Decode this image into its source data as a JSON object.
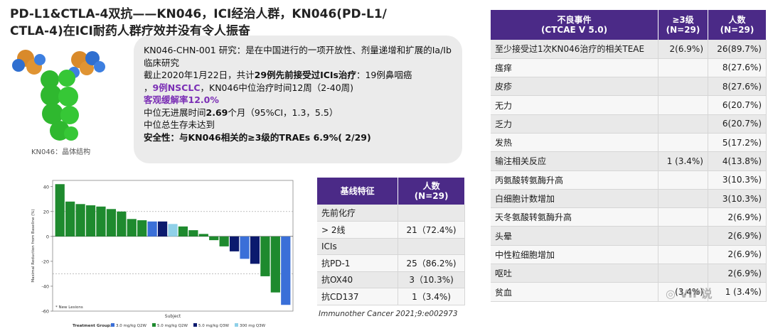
{
  "title": {
    "line1": "PD-L1&CTLA-4双抗——KN046，ICI经治人群，KN046(PD-L1/",
    "line2": "CTLA-4)在ICI耐药人群疗效并没有令人振奋"
  },
  "molecule": {
    "caption": "KN046：晶体结构"
  },
  "summary": {
    "study": "KN046-CHN-001 研究：是在中国进行的一项开放性、剂量递增和扩展的Ia/Ib 临床研究",
    "cutoff_prefix": "截止2020年1月22日，共计",
    "cutoff_bold": "29例先前接受过ICIs治疗",
    "cutoff_suffix": "：19例鼻咽癌",
    "nsclc_prefix": "，",
    "nsclc_purple": "9例NSCLC",
    "nsclc_suffix": "，KN046中位治疗时间12周（2-40周)",
    "orr": "客观缓解率12.0%",
    "pfs_prefix": "中位无进展时间",
    "pfs_bold": "2.69",
    "pfs_suffix": "个月（95%CI，1.3，5.5）",
    "os": "中位总生存未达到",
    "safety": "安全性：与KN046相关的≥3级的TRAEs 6.9%( 2/29)"
  },
  "ae_table": {
    "headers": [
      "不良事件\n(CTCAE V 5.0)",
      "≥3级\n(N=29)",
      "人数\n(N=29)"
    ],
    "rows": [
      [
        "至少接受过1次KN046治疗的相关TEAE",
        "2(6.9%)",
        "26(89.7%)"
      ],
      [
        "瘙痒",
        "",
        "8(27.6%)"
      ],
      [
        "皮疹",
        "",
        "8(27.6%)"
      ],
      [
        "无力",
        "",
        "6(20.7%)"
      ],
      [
        "乏力",
        "",
        "6(20.7%)"
      ],
      [
        "发热",
        "",
        "5(17.2%)"
      ],
      [
        "输注相关反应",
        "1  (3.4%)",
        "4(13.8%)"
      ],
      [
        "丙氨酸转氨酶升高",
        "",
        "3(10.3%)"
      ],
      [
        "白细胞计数增加",
        "",
        "3(10.3%)"
      ],
      [
        "天冬氨酸转氨酶升高",
        "",
        "2(6.9%)"
      ],
      [
        "头晕",
        "",
        "2(6.9%)"
      ],
      [
        "中性粒细胞增加",
        "",
        "2(6.9%)"
      ],
      [
        "呕吐",
        "",
        "2(6.9%)"
      ],
      [
        "贫血",
        "(3.4%)",
        "1 (3.4%)"
      ]
    ]
  },
  "baseline_table": {
    "headers": [
      "基线特征",
      "人数\n(N=29)"
    ],
    "rows": [
      [
        "先前化疗",
        ""
      ],
      [
        "  > 2线",
        "21（72.4%)"
      ],
      [
        "ICIs",
        ""
      ],
      [
        "抗PD-1",
        "25（86.2%)"
      ],
      [
        "抗OX40",
        "3（10.3%)"
      ],
      [
        "抗CD137",
        "1（3.4%)"
      ]
    ]
  },
  "citation": "Immunother Cancer  2021;9:e002973",
  "watermark": "VIP说",
  "chart_data": {
    "type": "bar",
    "ylabel": "Maximal Reduction from Baseline (%)",
    "xlabel": "Subject",
    "legend_note": "* New Lesions",
    "legend_title": "Treatment Group:",
    "legend": [
      {
        "name": "3.0 mg/kg Q2W",
        "color": "#3a6fd8"
      },
      {
        "name": "5.0 mg/kg Q2W",
        "color": "#1e8a2e"
      },
      {
        "name": "5.0 mg/kg Q3W",
        "color": "#0b1a6e"
      },
      {
        "name": "300 mg Q3W",
        "color": "#8fd0e8"
      }
    ],
    "ylim": [
      -60,
      45
    ],
    "yticks": [
      40,
      20,
      0,
      -20,
      -40,
      -60
    ],
    "reference_lines": [
      20,
      -30
    ],
    "values": [
      42,
      28,
      26,
      25,
      24,
      22,
      20,
      14,
      13,
      12,
      12,
      10,
      8,
      5,
      2,
      -3,
      -8,
      -12,
      -18,
      -22,
      -32,
      -45,
      -55
    ],
    "groups": [
      1,
      1,
      1,
      1,
      1,
      1,
      1,
      1,
      1,
      0,
      2,
      3,
      1,
      1,
      1,
      1,
      1,
      2,
      0,
      2,
      1,
      1,
      0
    ]
  }
}
